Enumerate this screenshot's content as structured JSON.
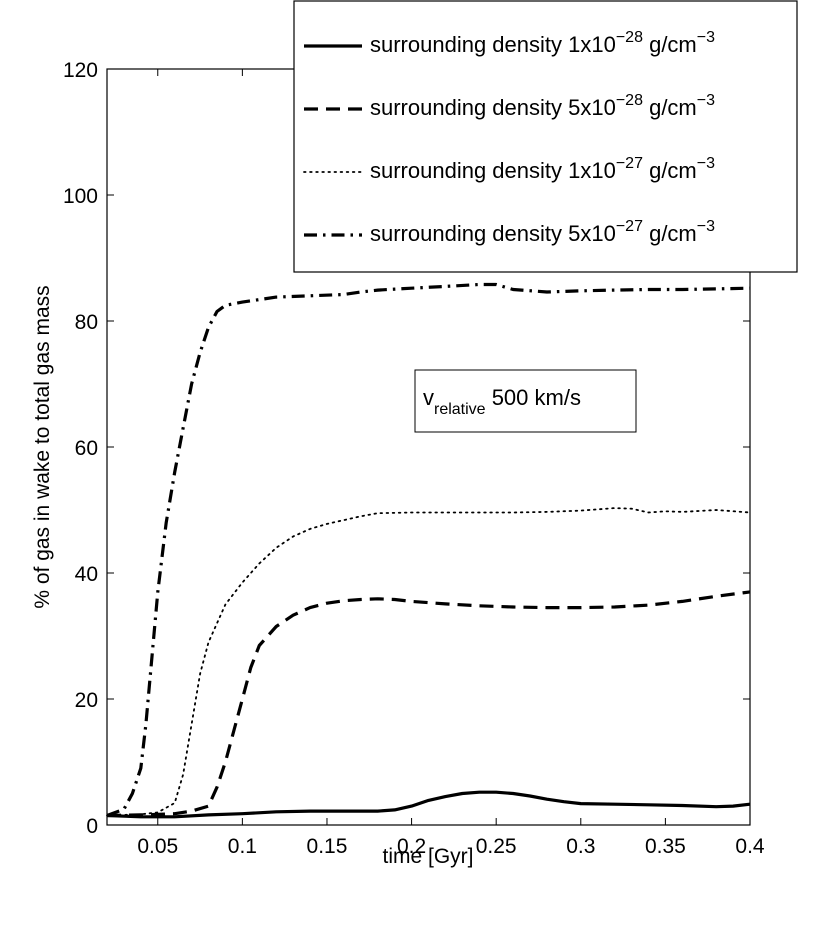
{
  "chart_data": {
    "type": "line",
    "xlabel": "time [Gyr]",
    "ylabel": "% of gas in wake to total gas mass",
    "xlim": [
      0.02,
      0.4
    ],
    "ylim": [
      0,
      120
    ],
    "xticks": [
      0.05,
      0.1,
      0.15,
      0.2,
      0.25,
      0.3,
      0.35,
      0.4
    ],
    "yticks": [
      0,
      20,
      40,
      60,
      80,
      100,
      120
    ],
    "xtick_labels": [
      "0.05",
      "0.1",
      "0.15",
      "0.2",
      "0.25",
      "0.3",
      "0.35",
      "0.4"
    ],
    "ytick_labels": [
      "0",
      "20",
      "40",
      "60",
      "80",
      "100",
      "120"
    ],
    "grid": false,
    "legend_position": "top-right",
    "series": [
      {
        "name": "surrounding density 1x10-28 g/cm-3",
        "legend": {
          "prefix": "surrounding density 1x10",
          "exp": "−28",
          "mid": " g/cm",
          "exp2": "−3"
        },
        "style": "solid",
        "x": [
          0.02,
          0.04,
          0.06,
          0.08,
          0.1,
          0.12,
          0.14,
          0.16,
          0.18,
          0.19,
          0.2,
          0.21,
          0.22,
          0.23,
          0.24,
          0.25,
          0.26,
          0.27,
          0.28,
          0.29,
          0.3,
          0.32,
          0.34,
          0.36,
          0.38,
          0.39,
          0.4
        ],
        "y": [
          1.5,
          1.3,
          1.3,
          1.6,
          1.8,
          2.1,
          2.2,
          2.2,
          2.2,
          2.4,
          3.0,
          3.9,
          4.5,
          5.0,
          5.2,
          5.2,
          5.0,
          4.6,
          4.1,
          3.7,
          3.4,
          3.3,
          3.2,
          3.1,
          2.9,
          3.0,
          3.3
        ]
      },
      {
        "name": "surrounding density 5x10-28 g/cm-3",
        "legend": {
          "prefix": "surrounding density 5x10",
          "exp": "−28",
          "mid": " g/cm",
          "exp2": "−3"
        },
        "style": "dashed",
        "x": [
          0.02,
          0.04,
          0.06,
          0.07,
          0.08,
          0.085,
          0.09,
          0.095,
          0.1,
          0.105,
          0.11,
          0.12,
          0.13,
          0.14,
          0.15,
          0.16,
          0.17,
          0.18,
          0.19,
          0.2,
          0.22,
          0.24,
          0.26,
          0.28,
          0.3,
          0.32,
          0.34,
          0.36,
          0.38,
          0.4
        ],
        "y": [
          1.5,
          1.6,
          1.8,
          2.2,
          3.0,
          6.0,
          10.0,
          15.0,
          20.0,
          25.0,
          28.5,
          31.5,
          33.3,
          34.5,
          35.2,
          35.6,
          35.8,
          35.9,
          35.8,
          35.5,
          35.1,
          34.8,
          34.6,
          34.5,
          34.5,
          34.6,
          34.9,
          35.5,
          36.3,
          37.0
        ]
      },
      {
        "name": "surrounding density 1x10-27 g/cm-3",
        "legend": {
          "prefix": "surrounding density 1x10",
          "exp": "−27",
          "mid": " g/cm",
          "exp2": "−3"
        },
        "style": "dotted",
        "x": [
          0.02,
          0.04,
          0.05,
          0.06,
          0.065,
          0.07,
          0.075,
          0.08,
          0.09,
          0.1,
          0.11,
          0.12,
          0.13,
          0.14,
          0.15,
          0.16,
          0.17,
          0.18,
          0.2,
          0.22,
          0.24,
          0.26,
          0.28,
          0.3,
          0.32,
          0.33,
          0.34,
          0.35,
          0.36,
          0.38,
          0.4
        ],
        "y": [
          1.5,
          1.7,
          2.0,
          3.5,
          8.0,
          16.0,
          24.0,
          29.0,
          35.0,
          38.5,
          41.5,
          44.0,
          45.8,
          47.0,
          47.8,
          48.4,
          49.0,
          49.5,
          49.6,
          49.6,
          49.6,
          49.6,
          49.7,
          49.9,
          50.3,
          50.2,
          49.6,
          49.8,
          49.7,
          50.0,
          49.6
        ]
      },
      {
        "name": "surrounding density 5x10-27 g/cm-3",
        "legend": {
          "prefix": "surrounding density 5x10",
          "exp": "−27",
          "mid": " g/cm",
          "exp2": "−3"
        },
        "style": "dashdot",
        "x": [
          0.02,
          0.03,
          0.035,
          0.04,
          0.043,
          0.045,
          0.05,
          0.055,
          0.06,
          0.065,
          0.07,
          0.075,
          0.08,
          0.085,
          0.09,
          0.1,
          0.12,
          0.14,
          0.16,
          0.17,
          0.18,
          0.2,
          0.22,
          0.24,
          0.25,
          0.26,
          0.28,
          0.3,
          0.32,
          0.34,
          0.36,
          0.38,
          0.4
        ],
        "y": [
          1.5,
          2.5,
          5.0,
          9.0,
          16.0,
          22.0,
          37.0,
          48.0,
          56.0,
          63.0,
          70.0,
          75.0,
          79.0,
          81.5,
          82.5,
          83.0,
          83.8,
          84.0,
          84.2,
          84.6,
          84.9,
          85.2,
          85.5,
          85.8,
          85.8,
          85.0,
          84.6,
          84.8,
          84.9,
          85.0,
          85.0,
          85.1,
          85.2
        ]
      }
    ],
    "annotation": {
      "main": "v",
      "sub": "relative",
      "rest": " 500 km/s"
    }
  }
}
